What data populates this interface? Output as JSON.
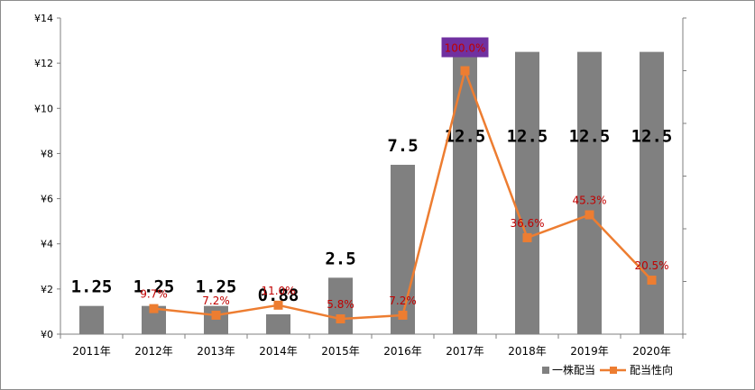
{
  "chart_data": {
    "type": "bar",
    "categories": [
      "2011年",
      "2012年",
      "2013年",
      "2014年",
      "2015年",
      "2016年",
      "2017年",
      "2018年",
      "2019年",
      "2020年"
    ],
    "series": [
      {
        "name": "一株配当",
        "type": "bar",
        "axis": "left",
        "color": "#808080",
        "values": [
          1.25,
          1.25,
          1.25,
          0.88,
          2.5,
          7.5,
          12.5,
          12.5,
          12.5,
          12.5
        ],
        "labels": [
          "1.25",
          "1.25",
          "1.25",
          "0.88",
          "2.5",
          "7.5",
          "12.5",
          "12.5",
          "12.5",
          "12.5"
        ]
      },
      {
        "name": "配当性向",
        "type": "line",
        "axis": "right",
        "color": "#ed7d31",
        "label_color": "#c00000",
        "values": [
          null,
          9.7,
          7.2,
          11.0,
          5.8,
          7.2,
          100.0,
          36.6,
          45.3,
          20.5
        ],
        "labels": [
          "",
          "9.7%",
          "7.2%",
          "11.0%",
          "5.8%",
          "7.2%",
          "100.0%",
          "36.6%",
          "45.3%",
          "20.5%"
        ],
        "highlight_index": 6,
        "highlight_color": "#7030a0"
      }
    ],
    "left_axis": {
      "ylim": [
        0,
        14
      ],
      "ticks": [
        0,
        2,
        4,
        6,
        8,
        10,
        12,
        14
      ],
      "tick_labels": [
        "¥0",
        "¥2",
        "¥4",
        "¥6",
        "¥8",
        "¥10",
        "¥12",
        "¥14"
      ]
    },
    "right_axis": {
      "ylim": [
        0,
        120
      ],
      "ticks": [
        0,
        20,
        40,
        60,
        80,
        100,
        120
      ],
      "tick_labels": []
    },
    "grid": false,
    "legend": {
      "position": "bottom-right",
      "entries": [
        "一株配当",
        "配当性向"
      ]
    }
  }
}
